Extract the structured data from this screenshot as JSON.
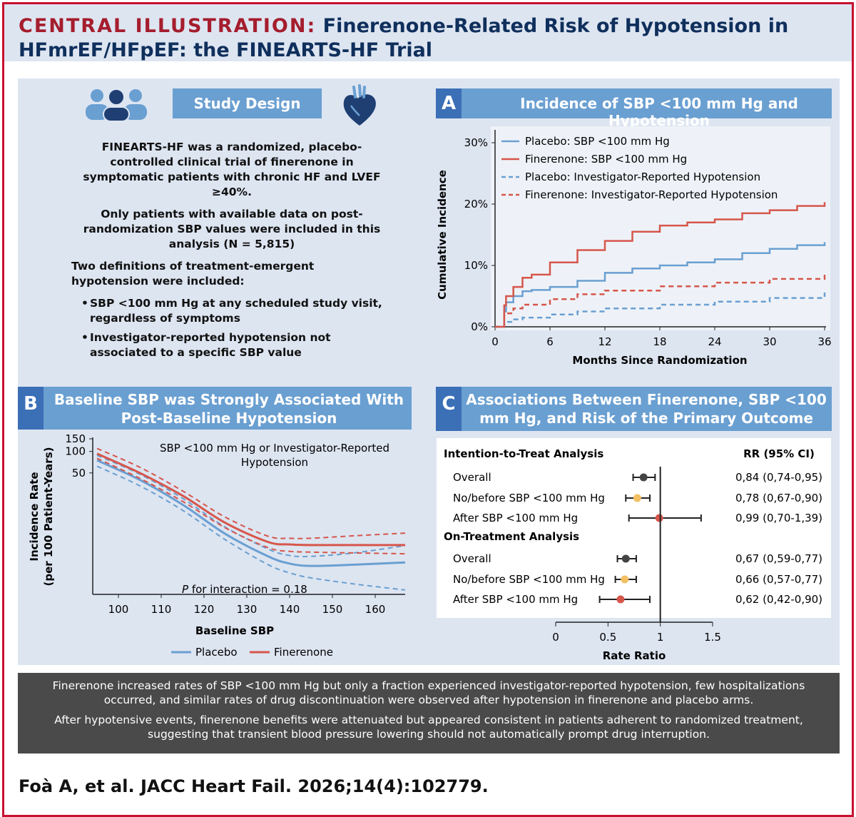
{
  "header": {
    "title_lead": "CENTRAL ILLUSTRATION:",
    "title_rest": "Finerenone-Related Risk of Hypotension in HFmrEF/HFpEF: the FINEARTS-HF Trial"
  },
  "study_design": {
    "title": "Study Design",
    "icons": [
      "people-group-icon",
      "heart-icon"
    ],
    "paragraph1": "FINEARTS-HF was a randomized, placebo-controlled clinical trial of finerenone in symptomatic patients with chronic HF and LVEF ≥40%.",
    "paragraph2": "Only patients with available data on post-randomization SBP values were included in this analysis (N = 5,815)",
    "paragraph3": "Two definitions of treatment-emergent hypotension were included:",
    "bullets": [
      "SBP <100 mm Hg at any scheduled study visit, regardless of symptoms",
      "Investigator-reported hypotension not associated to a specific SBP value"
    ]
  },
  "panels": {
    "a": {
      "letter": "A",
      "title": "Incidence of SBP <100 mm Hg and Hypotension"
    },
    "b": {
      "letter": "B",
      "title_line1": "Baseline SBP was Strongly Associated With",
      "title_line2": "Post-Baseline Hypotension"
    },
    "c": {
      "letter": "C",
      "title_line1": "Associations Between Finerenone, SBP <100",
      "title_line2": "mm Hg, and Risk of the Primary Outcome"
    }
  },
  "colors": {
    "placebo": "#6a9fd1",
    "finerenone": "#d6564b",
    "dark": "#444444",
    "yellow": "#f2c063",
    "accent_blue": "#3b6fb6"
  },
  "chart_data": [
    {
      "id": "panel-a",
      "type": "line",
      "xlabel": "Months Since Randomization",
      "ylabel": "Cumulative Incidence",
      "xlim": [
        0,
        36
      ],
      "ylim": [
        0,
        30
      ],
      "x_ticks": [
        "0",
        "6",
        "12",
        "18",
        "24",
        "30",
        "36"
      ],
      "y_ticks": [
        "0%",
        "10%",
        "20%",
        "30%"
      ],
      "legend_position": "top-left",
      "series": [
        {
          "name": "Placebo: SBP <100 mm Hg",
          "color": "#6a9fd1",
          "style": "solid",
          "x": [
            0,
            1,
            1.2,
            2,
            3,
            4,
            6,
            9,
            12,
            15,
            18,
            21,
            24,
            27,
            30,
            33,
            36
          ],
          "y": [
            0,
            2.5,
            4,
            5,
            5.8,
            6,
            6.5,
            7.5,
            8.8,
            9.5,
            10,
            10.5,
            11,
            12,
            12.7,
            13.3,
            13.8
          ]
        },
        {
          "name": "Finerenone: SBP <100 mm Hg",
          "color": "#d6564b",
          "style": "solid",
          "x": [
            0,
            1,
            1.2,
            2,
            3,
            4,
            6,
            9,
            12,
            15,
            18,
            21,
            24,
            27,
            30,
            33,
            36
          ],
          "y": [
            0,
            3.5,
            5,
            6.5,
            8,
            8.5,
            10.5,
            12.5,
            14,
            15.5,
            16.5,
            17,
            17.5,
            18.5,
            19,
            19.7,
            20.3
          ]
        },
        {
          "name": "Placebo: Investigator-Reported Hypotension",
          "color": "#6a9fd1",
          "style": "dashed",
          "x": [
            0,
            1,
            2,
            3,
            6,
            9,
            12,
            18,
            24,
            30,
            36
          ],
          "y": [
            0,
            0.8,
            1.2,
            1.5,
            2,
            2.5,
            3,
            3.6,
            4.1,
            4.7,
            5.6
          ]
        },
        {
          "name": "Finerenone: Investigator-Reported Hypotension",
          "color": "#d6564b",
          "style": "dashed",
          "x": [
            0,
            1,
            2,
            3,
            6,
            9,
            12,
            18,
            24,
            30,
            36
          ],
          "y": [
            0,
            2.2,
            3,
            3.6,
            4.5,
            5.3,
            5.9,
            6.6,
            7.2,
            7.8,
            8.6
          ]
        }
      ]
    },
    {
      "id": "panel-b",
      "type": "line",
      "xlabel": "Baseline SBP",
      "ylabel_line1": "Incidence Rate",
      "ylabel_line2": "(per 100 Patient-Years)",
      "annotation_line1": "SBP <100 mm Hg or Investigator-Reported",
      "annotation_line2": "Hypotension",
      "p_label_italic": "P",
      "p_label_rest": " for interaction = 0.18",
      "xlim": [
        94,
        167
      ],
      "y_scale": "log",
      "ylim": [
        1,
        150
      ],
      "x_ticks": [
        100,
        110,
        120,
        130,
        140,
        150,
        160
      ],
      "y_ticks": [
        50,
        100,
        150
      ],
      "legend": [
        "Placebo",
        "Finerenone"
      ],
      "legend_position": "bottom",
      "series": [
        {
          "name": "Placebo",
          "color": "#6a9fd1",
          "x": [
            95,
            105,
            115,
            125,
            135,
            140,
            145,
            155,
            167
          ],
          "mid": [
            75,
            40,
            18,
            7,
            3.4,
            2.7,
            2.5,
            2.6,
            2.8
          ],
          "lower": [
            62,
            33,
            15,
            5.8,
            2.6,
            2,
            1.7,
            1.4,
            1.15
          ],
          "upper": [
            88,
            48,
            22,
            8.7,
            4.3,
            3.5,
            3.4,
            3.8,
            4.8
          ]
        },
        {
          "name": "Finerenone",
          "color": "#d6564b",
          "x": [
            95,
            105,
            115,
            125,
            135,
            140,
            145,
            155,
            167
          ],
          "mid": [
            93,
            50,
            24,
            10,
            5.4,
            5,
            4.9,
            4.9,
            4.9
          ],
          "lower": [
            80,
            42,
            20,
            8.5,
            4.5,
            4,
            3.9,
            3.8,
            3.7
          ],
          "upper": [
            110,
            60,
            28,
            12,
            6.5,
            6.1,
            6.1,
            6.6,
            7.2
          ]
        }
      ]
    },
    {
      "id": "panel-c",
      "type": "forest",
      "xlabel": "Rate Ratio",
      "xlim": [
        0,
        1.5
      ],
      "x_ticks": [
        "0",
        "0.5",
        "1",
        "1.5"
      ],
      "rr_header": "RR (95% CI)",
      "groups": [
        {
          "label": "Intention-to-Treat Analysis",
          "rows": [
            {
              "label": "Overall",
              "rr": 0.84,
              "lo": 0.74,
              "hi": 0.95,
              "text": "0,84 (0,74-0,95)",
              "color": "#444444"
            },
            {
              "label": "No/before SBP <100 mm Hg",
              "rr": 0.78,
              "lo": 0.67,
              "hi": 0.9,
              "text": "0,78 (0,67-0,90)",
              "color": "#f2c063"
            },
            {
              "label": "After SBP <100 mm Hg",
              "rr": 0.99,
              "lo": 0.7,
              "hi": 1.39,
              "text": "0,99 (0,70-1,39)",
              "color": "#d6564b"
            }
          ]
        },
        {
          "label": "On-Treatment Analysis",
          "rows": [
            {
              "label": "Overall",
              "rr": 0.67,
              "lo": 0.59,
              "hi": 0.77,
              "text": "0,67 (0,59-0,77)",
              "color": "#444444"
            },
            {
              "label": "No/before SBP <100 mm Hg",
              "rr": 0.66,
              "lo": 0.57,
              "hi": 0.77,
              "text": "0,66 (0,57-0,77)",
              "color": "#f2c063"
            },
            {
              "label": "After SBP <100 mm Hg",
              "rr": 0.62,
              "lo": 0.42,
              "hi": 0.9,
              "text": "0,62 (0,42-0,90)",
              "color": "#d6564b"
            }
          ]
        }
      ]
    }
  ],
  "summary": {
    "p1": "Finerenone increased rates of SBP <100 mm Hg but only a fraction experienced investigator-reported hypotension, few hospitalizations occurred, and similar rates of drug discontinuation were observed after hypotension in finerenone and placebo arms.",
    "p2": "After hypotensive events, finerenone benefits were attenuated but appeared consistent in patients adherent to randomized treatment, suggesting that transient blood pressure lowering should not automatically prompt drug interruption."
  },
  "citation": "Foà A, et al. JACC Heart Fail. 2026;14(4):102779."
}
